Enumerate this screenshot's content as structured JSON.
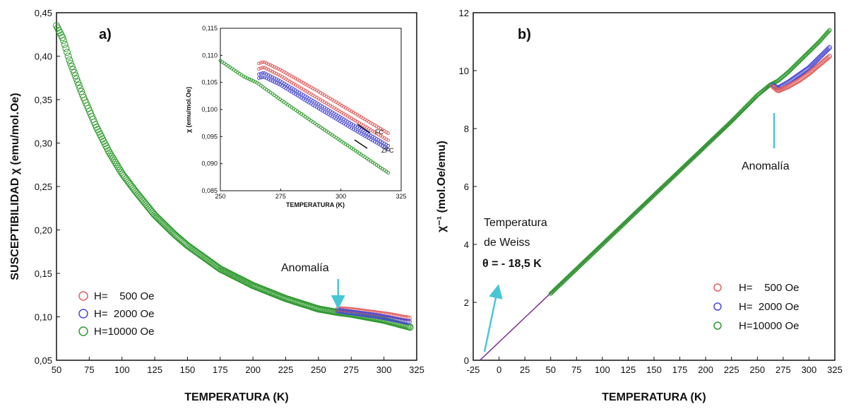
{
  "colors": {
    "series_500": "#e06060",
    "series_2000": "#4a4ad0",
    "series_10000": "#2f9a2f",
    "fit_line": "#7a2c8c",
    "arrow": "#49c6d6",
    "axis": "#111111"
  },
  "chart_data": [
    {
      "type": "scatter",
      "panel_label": "a)",
      "xlabel": "TEMPERATURA (K)",
      "ylabel": "SUSCEPTIBILIDAD χ (emu/mol.Oe)",
      "xlim": [
        50,
        325
      ],
      "ylim": [
        0.05,
        0.45
      ],
      "x_ticks": [
        "50",
        "75",
        "100",
        "125",
        "150",
        "175",
        "200",
        "225",
        "250",
        "275",
        "300",
        "325"
      ],
      "y_ticks": [
        "0,05",
        "0,10",
        "0,15",
        "0,20",
        "0,25",
        "0,30",
        "0,35",
        "0,40",
        "0,45"
      ],
      "legend_placement": "bottom-left",
      "annotation": "Anomalía",
      "annotation_arrow_x": 265,
      "series": [
        {
          "name": "H=    500 Oe",
          "x": [
            265,
            275,
            285,
            295,
            305,
            315,
            320
          ],
          "y": [
            0.109,
            0.108,
            0.106,
            0.104,
            0.102,
            0.099,
            0.098
          ]
        },
        {
          "name": "H=  2000 Oe",
          "x": [
            265,
            275,
            285,
            295,
            305,
            315,
            320
          ],
          "y": [
            0.107,
            0.105,
            0.103,
            0.101,
            0.098,
            0.095,
            0.094
          ]
        },
        {
          "name": "H=10000 Oe",
          "x": [
            50,
            55,
            60,
            70,
            80,
            90,
            100,
            110,
            125,
            140,
            150,
            175,
            200,
            225,
            250,
            265,
            275,
            300,
            320
          ],
          "y": [
            0.435,
            0.42,
            0.395,
            0.355,
            0.32,
            0.29,
            0.265,
            0.245,
            0.217,
            0.195,
            0.182,
            0.155,
            0.136,
            0.121,
            0.109,
            0.105,
            0.103,
            0.096,
            0.088
          ]
        }
      ],
      "inset": {
        "xlabel": "TEMPERATURA (K)",
        "ylabel": "χ (emu/mol.Oe)",
        "xlim": [
          250,
          325
        ],
        "ylim": [
          0.085,
          0.115
        ],
        "x_ticks": [
          "250",
          "275",
          "300",
          "325"
        ],
        "y_ticks": [
          "0,085",
          "0,090",
          "0,095",
          "0,100",
          "0,105",
          "0,110",
          "0,115"
        ],
        "label_fc": "FC",
        "label_zfc": "ZFC",
        "series": [
          {
            "x": [
              266,
              268,
              275,
              290,
              305,
              320
            ],
            "y": [
              0.1085,
              0.1088,
              0.1073,
              0.1035,
              0.0995,
              0.0955
            ]
          },
          {
            "x": [
              266,
              268,
              275,
              290,
              305,
              320
            ],
            "y": [
              0.1075,
              0.1078,
              0.1062,
              0.1022,
              0.0982,
              0.0942
            ]
          },
          {
            "x": [
              266,
              268,
              275,
              290,
              305,
              320
            ],
            "y": [
              0.1065,
              0.1068,
              0.1052,
              0.1012,
              0.0972,
              0.0932
            ]
          },
          {
            "x": [
              266,
              268,
              275,
              290,
              305,
              320
            ],
            "y": [
              0.1058,
              0.106,
              0.1045,
              0.1004,
              0.0964,
              0.0925
            ]
          },
          {
            "x": [
              250,
              255,
              260,
              265,
              275,
              290,
              305,
              320
            ],
            "y": [
              0.109,
              0.1075,
              0.106,
              0.105,
              0.1018,
              0.0972,
              0.0927,
              0.0882
            ]
          }
        ]
      }
    },
    {
      "type": "scatter",
      "panel_label": "b)",
      "xlabel": "TEMPERATURA (K)",
      "ylabel": "χ⁻¹ (mol.Oe/emu)",
      "xlim": [
        -25,
        325
      ],
      "ylim": [
        0,
        12
      ],
      "x_ticks": [
        "-25",
        "0",
        "25",
        "50",
        "75",
        "100",
        "125",
        "150",
        "175",
        "200",
        "225",
        "250",
        "275",
        "300",
        "325"
      ],
      "y_ticks": [
        "0",
        "2",
        "4",
        "6",
        "8",
        "10",
        "12"
      ],
      "legend_placement": "bottom-right",
      "annotation": "Anomalía",
      "annotation_arrow_x": 262,
      "weiss_title_line1": "Temperatura",
      "weiss_title_line2": "de Weiss",
      "weiss_value": "θ = - 18,5 K",
      "fit_line": {
        "x": [
          -18.5,
          262
        ],
        "y": [
          0,
          9.5
        ]
      },
      "series": [
        {
          "name": "H=    500 Oe",
          "x": [
            265,
            270,
            280,
            290,
            300,
            310,
            320
          ],
          "y": [
            9.45,
            9.3,
            9.45,
            9.65,
            9.9,
            10.2,
            10.5
          ]
        },
        {
          "name": "H=  2000 Oe",
          "x": [
            265,
            270,
            280,
            290,
            300,
            310,
            320
          ],
          "y": [
            9.5,
            9.4,
            9.6,
            9.85,
            10.1,
            10.45,
            10.8
          ]
        },
        {
          "name": "H=10000 Oe",
          "x": [
            50,
            75,
            100,
            125,
            150,
            175,
            200,
            225,
            250,
            262,
            270,
            280,
            290,
            300,
            310,
            320
          ],
          "y": [
            2.3,
            3.15,
            4.0,
            4.85,
            5.7,
            6.55,
            7.4,
            8.25,
            9.15,
            9.5,
            9.65,
            9.95,
            10.3,
            10.65,
            11.0,
            11.4
          ]
        }
      ]
    }
  ]
}
